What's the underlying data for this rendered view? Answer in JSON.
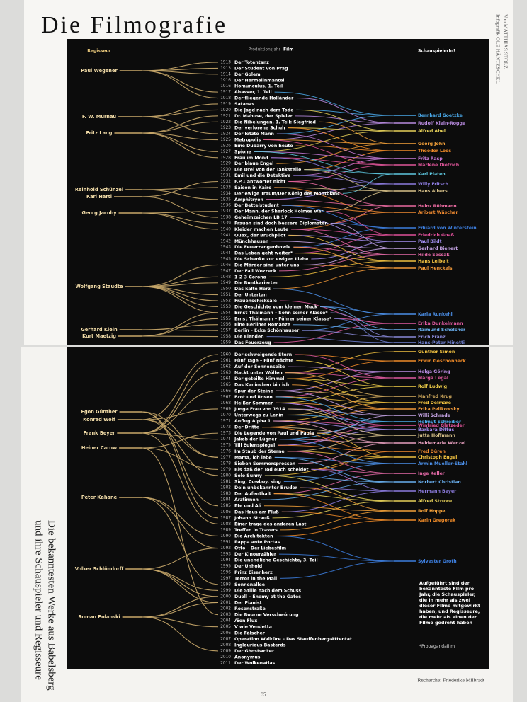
{
  "header": {
    "title": "Die Filmografie",
    "credit_graphic": "Infografik OLE HÄNTZSCHEL",
    "credit_author": "Von MATTHIAS STOLZ"
  },
  "columns": {
    "director": "Regisseur",
    "year": "Produktionsjahr",
    "film": "Film",
    "actor": "SchauspielerIn!"
  },
  "panels": [
    {
      "directors": [
        "Paul Wegener",
        "F. W. Murnau",
        "Fritz Lang",
        "Reinhold Schünzel",
        "Karl Hartl",
        "Georg Jacoby",
        "Wolfgang Staudte",
        "Gerhard Klein",
        "Kurt Maetzig"
      ],
      "films": [
        {
          "year": 1913,
          "title": "Der Totentanz"
        },
        {
          "year": 1913,
          "title": "Der Student von Prag"
        },
        {
          "year": 1914,
          "title": "Der Golem"
        },
        {
          "year": 1916,
          "title": "Der Hermelinmantel"
        },
        {
          "year": 1916,
          "title": "Homunculus, 1. Teil"
        },
        {
          "year": 1917,
          "title": "Ahasver, 1. Teil"
        },
        {
          "year": 1918,
          "title": "Der fliegende Holländer"
        },
        {
          "year": 1919,
          "title": "Satanas"
        },
        {
          "year": 1920,
          "title": "Die Jagd nach dem Tode"
        },
        {
          "year": 1921,
          "title": "Dr. Mabuse, der Spieler"
        },
        {
          "year": 1922,
          "title": "Die Nibelungen, 1. Teil: Siegfried"
        },
        {
          "year": 1923,
          "title": "Der verlorene Schuh"
        },
        {
          "year": 1924,
          "title": "Der letzte Mann"
        },
        {
          "year": 1925,
          "title": "Metropolis"
        },
        {
          "year": 1926,
          "title": "Eine Dubarry von heute"
        },
        {
          "year": 1927,
          "title": "Spione"
        },
        {
          "year": 1928,
          "title": "Frau im Mond"
        },
        {
          "year": 1929,
          "title": "Der blaue Engel"
        },
        {
          "year": 1930,
          "title": "Die Drei von der Tankstelle"
        },
        {
          "year": 1931,
          "title": "Emil und die Detektive"
        },
        {
          "year": 1932,
          "title": "F.P.1 antwortet nicht"
        },
        {
          "year": 1933,
          "title": "Saison in Kairo"
        },
        {
          "year": 1934,
          "title": "Der ewige Traum/Der König des Montblanc"
        },
        {
          "year": 1935,
          "title": "Amphitryon"
        },
        {
          "year": 1936,
          "title": "Der Bettelstudent"
        },
        {
          "year": 1937,
          "title": "Der Mann, der Sherlock Holmes war"
        },
        {
          "year": 1938,
          "title": "Geheimzeichen LB 17"
        },
        {
          "year": 1939,
          "title": "Frauen sind doch bessere Diplomaten"
        },
        {
          "year": 1940,
          "title": "Kleider machen Leute"
        },
        {
          "year": 1941,
          "title": "Quax, der Bruchpilot"
        },
        {
          "year": 1942,
          "title": "Münchhausen"
        },
        {
          "year": 1943,
          "title": "Die Feuerzangenbowle"
        },
        {
          "year": 1944,
          "title": "Das Leben geht weiter*"
        },
        {
          "year": 1945,
          "title": "Die Schenke zur ewigen Liebe"
        },
        {
          "year": 1946,
          "title": "Die Mörder sind unter uns"
        },
        {
          "year": 1947,
          "title": "Der Fall Wozzeck"
        },
        {
          "year": 1948,
          "title": "1-2-3 Corona"
        },
        {
          "year": 1949,
          "title": "Die Buntkarierten"
        },
        {
          "year": 1950,
          "title": "Das kalte Herz"
        },
        {
          "year": 1951,
          "title": "Der Untertan"
        },
        {
          "year": 1952,
          "title": "Frauenschicksale"
        },
        {
          "year": 1953,
          "title": "Die Geschichte vom kleinen Muck"
        },
        {
          "year": 1954,
          "title": "Ernst Thälmann – Sohn seiner Klasse*"
        },
        {
          "year": 1955,
          "title": "Ernst Thälmann – Führer seiner Klasse*"
        },
        {
          "year": 1956,
          "title": "Eine Berliner Romanze"
        },
        {
          "year": 1957,
          "title": "Berlin – Ecke Schönhauser"
        },
        {
          "year": 1958,
          "title": "Die Elenden"
        },
        {
          "year": 1959,
          "title": "Das Feuerzeug"
        }
      ],
      "actors": [
        {
          "name": "Bernhard Goetzke",
          "color": "#4aa8e8"
        },
        {
          "name": "Rudolf Klein-Rogge",
          "color": "#b98be0"
        },
        {
          "name": "Alfred Abel",
          "color": "#e8d25a"
        },
        {
          "name": "Georg John",
          "color": "#f5a23a"
        },
        {
          "name": "Theodor Loos",
          "color": "#f28c28"
        },
        {
          "name": "Fritz Rasp",
          "color": "#c77ad8"
        },
        {
          "name": "Marlene Dietrich",
          "color": "#e0569a"
        },
        {
          "name": "Karl Platen",
          "color": "#5ec8e0"
        },
        {
          "name": "Willy Fritsch",
          "color": "#8d7ce0"
        },
        {
          "name": "Hans Albers",
          "color": "#d8c28a"
        },
        {
          "name": "Heinz Rühmann",
          "color": "#e96aa0"
        },
        {
          "name": "Aribert Wäscher",
          "color": "#f08a30"
        },
        {
          "name": "Eduard von Winterstein",
          "color": "#3d7fe0"
        },
        {
          "name": "Friedrich Gnaß",
          "color": "#e0509a"
        },
        {
          "name": "Paul Bildt",
          "color": "#a38ef0"
        },
        {
          "name": "Gerhard Bienert",
          "color": "#c8a6e8"
        },
        {
          "name": "Hilde Sessak",
          "color": "#e56aa8"
        },
        {
          "name": "Hans Leibelt",
          "color": "#f0c040"
        },
        {
          "name": "Paul Henckels",
          "color": "#f39a3a"
        },
        {
          "name": "Karla Runkehl",
          "color": "#4b8fe8"
        },
        {
          "name": "Erika Dunkelmann",
          "color": "#e05aa0"
        },
        {
          "name": "Raimund Schelcher",
          "color": "#6ab0f0"
        },
        {
          "name": "Erich Franz",
          "color": "#8a8ad8"
        },
        {
          "name": "Hans-Peter Minetti",
          "color": "#6f7fd0"
        }
      ]
    },
    {
      "directors": [
        "Egon Günther",
        "Konrad Wolf",
        "Frank Beyer",
        "Heiner Carow",
        "Peter Kahane",
        "Volker Schlöndorff",
        "Roman Polanski"
      ],
      "films": [
        {
          "year": 1960,
          "title": "Der schweigende Stern"
        },
        {
          "year": 1961,
          "title": "Fünf Tage – Fünf Nächte"
        },
        {
          "year": 1962,
          "title": "Auf der Sonnenseite"
        },
        {
          "year": 1963,
          "title": "Nackt unter Wölfen"
        },
        {
          "year": 1964,
          "title": "Der geteilte Himmel"
        },
        {
          "year": 1965,
          "title": "Das Kaninchen bin ich"
        },
        {
          "year": 1966,
          "title": "Spur der Steine"
        },
        {
          "year": 1967,
          "title": "Brot und Rosen"
        },
        {
          "year": 1968,
          "title": "Heißer Sommer"
        },
        {
          "year": 1969,
          "title": "Junge Frau von 1914"
        },
        {
          "year": 1970,
          "title": "Unterwegs zu Lenin"
        },
        {
          "year": 1971,
          "title": "Anflug Alpha 1"
        },
        {
          "year": 1972,
          "title": "Der Dritte"
        },
        {
          "year": 1973,
          "title": "Die Legende von Paul und Paula"
        },
        {
          "year": 1974,
          "title": "Jakob der Lügner"
        },
        {
          "year": 1975,
          "title": "Till Eulenspiegel"
        },
        {
          "year": 1976,
          "title": "Im Staub der Sterne"
        },
        {
          "year": 1977,
          "title": "Mama, ich lebe"
        },
        {
          "year": 1978,
          "title": "Sieben Sommersprossen"
        },
        {
          "year": 1979,
          "title": "Bis daß der Tod euch scheidet"
        },
        {
          "year": 1980,
          "title": "Solo Sunny"
        },
        {
          "year": 1981,
          "title": "Sing, Cowboy, sing"
        },
        {
          "year": 1982,
          "title": "Dein unbekannter Bruder"
        },
        {
          "year": 1983,
          "title": "Der Aufenthalt"
        },
        {
          "year": 1984,
          "title": "Ärztinnen"
        },
        {
          "year": 1985,
          "title": "Ete und Ali"
        },
        {
          "year": 1986,
          "title": "Das Haus am Fluß"
        },
        {
          "year": 1987,
          "title": "Johann Strauß"
        },
        {
          "year": 1988,
          "title": "Einer trage des anderen Last"
        },
        {
          "year": 1989,
          "title": "Treffen in Travers"
        },
        {
          "year": 1990,
          "title": "Die Architekten"
        },
        {
          "year": 1991,
          "title": "Pappa ante Portas"
        },
        {
          "year": 1992,
          "title": "Otto – Der Liebesfilm"
        },
        {
          "year": 1993,
          "title": "Der Kinoerzähler"
        },
        {
          "year": 1994,
          "title": "Die unendliche Geschichte, 3. Teil"
        },
        {
          "year": 1995,
          "title": "Der Unhold"
        },
        {
          "year": 1996,
          "title": "Prinz Eisenherz"
        },
        {
          "year": 1997,
          "title": "Terror in the Mall"
        },
        {
          "year": 1998,
          "title": "Sonnenallee"
        },
        {
          "year": 1999,
          "title": "Die Stille nach dem Schuss"
        },
        {
          "year": 2000,
          "title": "Duell – Enemy at the Gates"
        },
        {
          "year": 2001,
          "title": "Der Pianist"
        },
        {
          "year": 2002,
          "title": "Rosenstraße"
        },
        {
          "year": 2003,
          "title": "Die Bourne Verschwörung"
        },
        {
          "year": 2004,
          "title": "Æon Flux"
        },
        {
          "year": 2005,
          "title": "V wie Vendetta"
        },
        {
          "year": 2006,
          "title": "Die Fälscher"
        },
        {
          "year": 2007,
          "title": "Operation Walküre – Das Stauffenberg-Attentat"
        },
        {
          "year": 2008,
          "title": "Inglourious Basterds"
        },
        {
          "year": 2009,
          "title": "Der Ghostwriter"
        },
        {
          "year": 2010,
          "title": "Anonymus"
        },
        {
          "year": 2011,
          "title": "Der Wolkenatlas"
        }
      ],
      "actors": [
        {
          "name": "Günther Simon",
          "color": "#f0c040"
        },
        {
          "name": "Erwin Geschonneck",
          "color": "#f28c28"
        },
        {
          "name": "Helga Göring",
          "color": "#b98be0"
        },
        {
          "name": "Marga Legal",
          "color": "#e05aa0"
        },
        {
          "name": "Rolf Ludwig",
          "color": "#f5d24a"
        },
        {
          "name": "Manfred Krug",
          "color": "#d8b060"
        },
        {
          "name": "Fred Delmare",
          "color": "#f0c040"
        },
        {
          "name": "Erika Pelikowsky",
          "color": "#f29a3a"
        },
        {
          "name": "Willi Schrade",
          "color": "#c8a6e8"
        },
        {
          "name": "Helmut Schreiber",
          "color": "#4aa8e8"
        },
        {
          "name": "Winfried Glatzeder",
          "color": "#e0569a"
        },
        {
          "name": "Barbara Dittus",
          "color": "#a38ef0"
        },
        {
          "name": "Jutta Hoffmann",
          "color": "#d8c28a"
        },
        {
          "name": "Heidemarie Wenzel",
          "color": "#e8a0c0"
        },
        {
          "name": "Fred Düren",
          "color": "#f08a30"
        },
        {
          "name": "Christoph Engel",
          "color": "#f0c040"
        },
        {
          "name": "Armin Mueller-Stahl",
          "color": "#4b8fe8"
        },
        {
          "name": "Inge Keller",
          "color": "#e56aa8"
        },
        {
          "name": "Norbert Christian",
          "color": "#6ab0f0"
        },
        {
          "name": "Hermann Beyer",
          "color": "#8d7ce0"
        },
        {
          "name": "Alfred Struwe",
          "color": "#e8d25a"
        },
        {
          "name": "Rolf Hoppe",
          "color": "#f5a23a"
        },
        {
          "name": "Karin Gregorek",
          "color": "#f28c28"
        },
        {
          "name": "Sylvester Groth",
          "color": "#3d7fe0"
        }
      ]
    }
  ],
  "subtitle": [
    "Die bekanntesten Werke aus Babelsberg",
    "und ihre Schauspieler und Regisseure"
  ],
  "note": "Aufgeführt sind der bekannteste Film pro Jahr, die Schauspieler, die in mehr als zwei dieser Filme mitgewirkt haben, und Regisseure, die mehr als einen der Filme gedreht haben",
  "footnote": "*Propagandafilm",
  "research": "Recherche: Friederike Milbradt",
  "page_number": "35"
}
